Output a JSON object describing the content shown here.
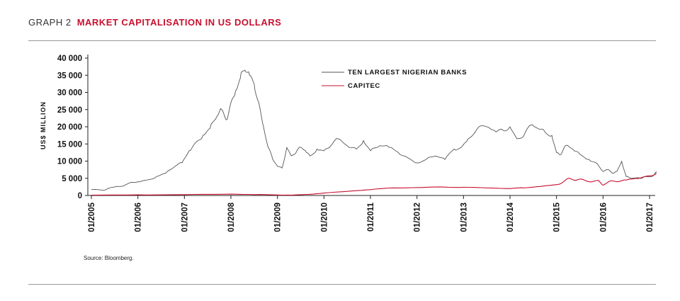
{
  "header": {
    "label": "GRAPH 2",
    "title": "MARKET CAPITALISATION IN US DOLLARS"
  },
  "source": "Source: Bloomberg.",
  "colors": {
    "banks": "#555555",
    "capitec": "#c8102e",
    "title": "#c8102e"
  },
  "chart_data": {
    "type": "line",
    "title": "MARKET CAPITALISATION IN US DOLLARS",
    "xlabel": "",
    "ylabel": "US$ MILLION",
    "ylim": [
      0,
      40000
    ],
    "yticks": [
      0,
      5000,
      10000,
      15000,
      20000,
      25000,
      30000,
      35000,
      40000
    ],
    "ytick_labels": [
      "0",
      "5 000",
      "10 000",
      "15 000",
      "20 000",
      "25 000",
      "30 000",
      "35 000",
      "40 000"
    ],
    "xlim": [
      2005.0,
      2017.2
    ],
    "xticks": [
      2005,
      2006,
      2007,
      2008,
      2009,
      2010,
      2011,
      2012,
      2013,
      2014,
      2015,
      2016,
      2017
    ],
    "xtick_labels": [
      "01/2005",
      "01/2006",
      "01/2007",
      "01/2008",
      "01/2009",
      "01/2010",
      "01/2011",
      "01/2012",
      "01/2013",
      "01/2014",
      "01/2015",
      "01/2016",
      "01/2017"
    ],
    "grid": false,
    "legend": "top-center",
    "series": [
      {
        "name": "TEN LARGEST NIGERIAN BANKS",
        "x": [
          2005.0,
          2005.2,
          2005.35,
          2005.5,
          2005.7,
          2005.9,
          2006.0,
          2006.2,
          2006.4,
          2006.6,
          2006.8,
          2006.95,
          2007.1,
          2007.25,
          2007.4,
          2007.55,
          2007.7,
          2007.8,
          2007.9,
          2008.0,
          2008.1,
          2008.2,
          2008.3,
          2008.4,
          2008.5,
          2008.6,
          2008.7,
          2008.8,
          2008.9,
          2009.0,
          2009.1,
          2009.2,
          2009.3,
          2009.4,
          2009.5,
          2009.6,
          2009.7,
          2009.85,
          2010.0,
          2010.15,
          2010.3,
          2010.5,
          2010.7,
          2010.85,
          2011.0,
          2011.2,
          2011.4,
          2011.6,
          2011.8,
          2012.0,
          2012.2,
          2012.4,
          2012.6,
          2012.8,
          2012.95,
          2013.1,
          2013.3,
          2013.5,
          2013.7,
          2013.85,
          2014.0,
          2014.15,
          2014.3,
          2014.45,
          2014.6,
          2014.75,
          2014.9,
          2015.0,
          2015.1,
          2015.2,
          2015.35,
          2015.5,
          2015.7,
          2015.85,
          2016.0,
          2016.1,
          2016.2,
          2016.3,
          2016.4,
          2016.5,
          2016.6,
          2016.7,
          2016.8,
          2016.9,
          2017.0,
          2017.1,
          2017.15
        ],
        "values": [
          1800,
          1600,
          2000,
          2500,
          2800,
          3800,
          4000,
          4500,
          5500,
          6500,
          8500,
          9500,
          13000,
          15500,
          17500,
          19500,
          23000,
          25000,
          22000,
          27000,
          30500,
          34000,
          36500,
          35000,
          32500,
          27000,
          20000,
          14000,
          10500,
          8500,
          8000,
          14000,
          11500,
          12500,
          14000,
          13000,
          11500,
          13500,
          13000,
          14500,
          16500,
          14500,
          13500,
          16000,
          13000,
          14500,
          14000,
          12500,
          11000,
          9500,
          10500,
          11500,
          10500,
          13500,
          14000,
          16500,
          19500,
          20000,
          18500,
          19000,
          20000,
          16500,
          17500,
          20500,
          19500,
          18500,
          17500,
          12500,
          12000,
          14500,
          13500,
          12000,
          10500,
          9500,
          7000,
          7500,
          6500,
          7000,
          10000,
          5500,
          5000,
          5000,
          5000,
          5500,
          5500,
          6000,
          7000
        ]
      },
      {
        "name": "CAPITEC",
        "x": [
          2005.0,
          2006.0,
          2007.0,
          2008.0,
          2008.5,
          2009.0,
          2009.3,
          2009.6,
          2010.0,
          2010.5,
          2011.0,
          2011.5,
          2012.0,
          2012.5,
          2013.0,
          2013.5,
          2014.0,
          2014.3,
          2014.6,
          2014.9,
          2015.1,
          2015.25,
          2015.4,
          2015.55,
          2015.7,
          2015.9,
          2016.0,
          2016.15,
          2016.3,
          2016.5,
          2016.7,
          2016.9,
          2017.1,
          2017.15
        ],
        "values": [
          100,
          200,
          250,
          400,
          250,
          150,
          100,
          300,
          700,
          1200,
          1700,
          2200,
          2300,
          2500,
          2400,
          2200,
          2000,
          2200,
          2600,
          3000,
          3500,
          5000,
          4400,
          4700,
          4000,
          4400,
          3000,
          4200,
          4000,
          4500,
          5000,
          5500,
          6000,
          6500
        ]
      }
    ]
  }
}
